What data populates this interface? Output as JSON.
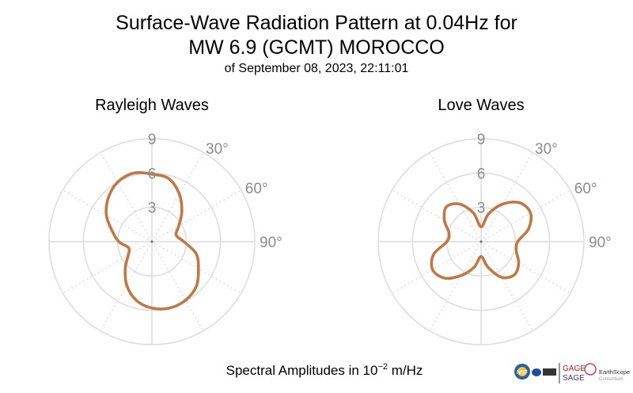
{
  "title": {
    "line1": "Surface-Wave Radiation Pattern at 0.04Hz for",
    "line2": "MW 6.9 (GCMT) MOROCCO",
    "subtitle": "of September 08, 2023, 22:11:01"
  },
  "caption": {
    "prefix": "Spectral Amplitudes in 10",
    "exponent": "−2",
    "suffix": " m/Hz"
  },
  "logos": {
    "gage": "GAGE",
    "sage": "SAGE",
    "earthscope": "EarthScope",
    "consortium": "Consortium",
    "nsf": "NSF"
  },
  "chart_data": [
    {
      "type": "polar-line",
      "title": "Rayleigh Waves",
      "color": "#c07845",
      "radial_ticks": [
        "3",
        "6",
        "9"
      ],
      "radial_range": [
        0,
        9
      ],
      "angle_tick_labels": [
        "30°",
        "60°",
        "90°"
      ],
      "angle_direction": "clockwise from north",
      "grid": true,
      "azimuth_deg": [
        0,
        15,
        30,
        45,
        60,
        75,
        90,
        105,
        120,
        135,
        150,
        165,
        180,
        195,
        210,
        225,
        240,
        255,
        270,
        285,
        300,
        315,
        330,
        345
      ],
      "amplitude": [
        5.9,
        5.7,
        4.8,
        3.7,
        2.7,
        2.2,
        2.8,
        4.0,
        4.7,
        5.5,
        5.9,
        6.0,
        5.8,
        5.3,
        4.4,
        3.3,
        2.4,
        2.1,
        2.9,
        3.6,
        4.6,
        5.4,
        6.0,
        6.2
      ]
    },
    {
      "type": "polar-line",
      "title": "Love Waves",
      "color": "#c07845",
      "radial_ticks": [
        "3",
        "6",
        "9"
      ],
      "radial_range": [
        0,
        9
      ],
      "angle_tick_labels": [
        "30°",
        "60°",
        "90°"
      ],
      "angle_direction": "clockwise from north",
      "grid": true,
      "azimuth_deg": [
        0,
        15,
        30,
        45,
        60,
        75,
        90,
        105,
        120,
        135,
        150,
        165,
        180,
        195,
        210,
        225,
        240,
        255,
        270,
        285,
        300,
        315,
        330,
        345
      ],
      "amplitude": [
        1.3,
        2.5,
        3.8,
        4.8,
        5.0,
        4.3,
        3.2,
        3.2,
        3.8,
        4.1,
        3.6,
        2.3,
        1.3,
        2.3,
        3.4,
        4.5,
        4.9,
        4.3,
        3.0,
        2.9,
        3.7,
        4.3,
        3.8,
        2.6
      ]
    }
  ]
}
